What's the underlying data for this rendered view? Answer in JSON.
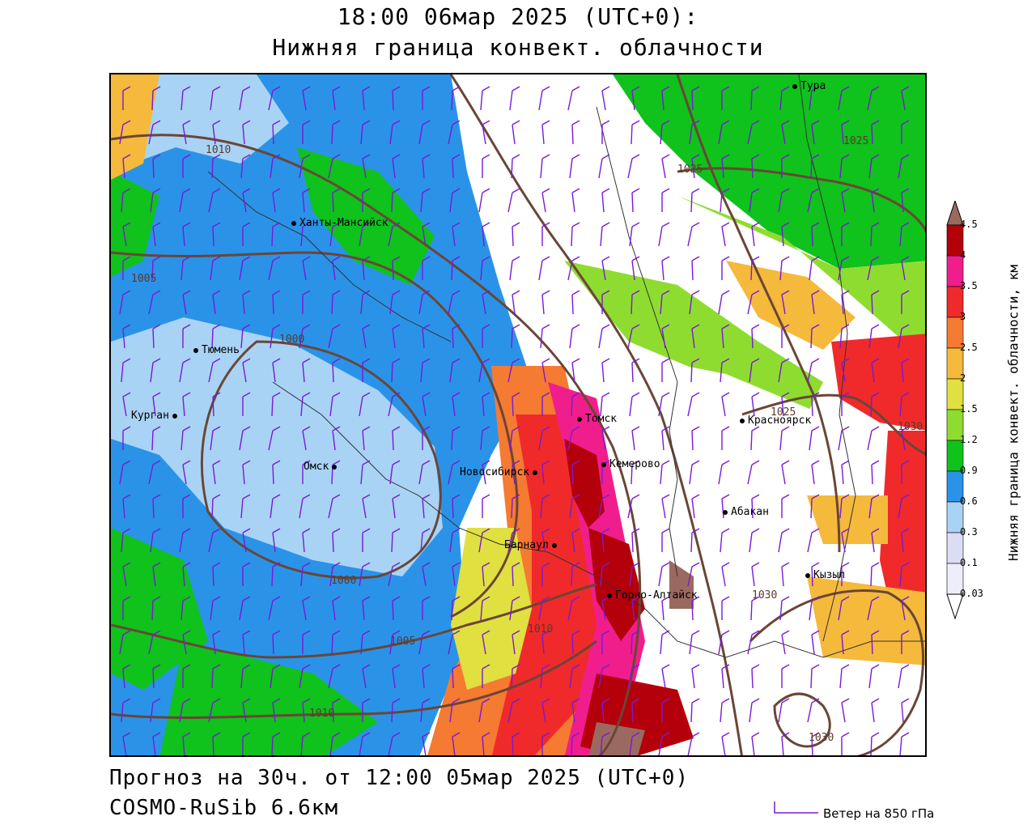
{
  "header": {
    "title_line1": "18:00 06мар 2025 (UTC+0):",
    "title_line2": "Нижняя граница конвект. облачности"
  },
  "footer": {
    "forecast": "Прогноз на 30ч. от 12:00 05мар 2025 (UTC+0)",
    "model": "COSMO-RuSib 6.6км",
    "wind_legend": "Ветер на 850 гПа"
  },
  "colorbar": {
    "title": "Нижняя граница конвект. облачности, км",
    "levels": [
      "0.03",
      "0.1",
      "0.3",
      "0.6",
      "0.9",
      "1.2",
      "1.5",
      "2",
      "2.5",
      "3",
      "3.5",
      "4",
      "4.5"
    ],
    "colors": [
      "#eeeefa",
      "#dcdcf5",
      "#a9d3f5",
      "#2a93e8",
      "#0fc21c",
      "#8fdc30",
      "#e0e040",
      "#f5b93c",
      "#f57a32",
      "#f02a2a",
      "#f01e8c",
      "#b4000a",
      "#9a6a60"
    ]
  },
  "cities": [
    {
      "name": "Тура"
    },
    {
      "name": "Ханты-Мансийск"
    },
    {
      "name": "Тюмень"
    },
    {
      "name": "Курган"
    },
    {
      "name": "Омск"
    },
    {
      "name": "Томск"
    },
    {
      "name": "Красноярск"
    },
    {
      "name": "Новосибирск"
    },
    {
      "name": "Кемерово"
    },
    {
      "name": "Абакан"
    },
    {
      "name": "Барнаул"
    },
    {
      "name": "Кызыл"
    },
    {
      "name": "Горно-Алтайск"
    }
  ],
  "isobars": [
    "1010",
    "1025",
    "1025",
    "1005",
    "1000",
    "1000",
    "1030",
    "1025",
    "1030",
    "1005",
    "1010",
    "1010",
    "1030"
  ]
}
